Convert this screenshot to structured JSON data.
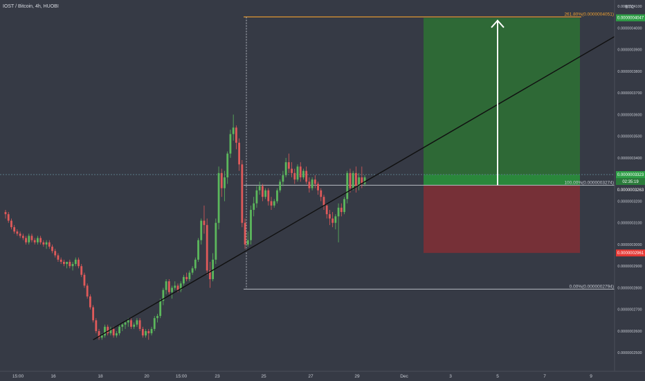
{
  "header": {
    "title": "IOST / Bitcoin, 4h, HUOBI",
    "currency": "BTC"
  },
  "colors": {
    "background": "#363a45",
    "up": "#5cb85c",
    "down": "#e05a5a",
    "target_zone": "#2e6b36",
    "stop_zone": "#7a2f37",
    "fib_target_line": "#f0a030",
    "fib_line": "#b8bcc4",
    "trendline": "#111111",
    "current_price_line": "#5a7a88",
    "stop_tag": "#e53935",
    "target_tag": "#2e9e46"
  },
  "chart_data": {
    "type": "candlestick",
    "ylim": [
      2.44e-07,
      4.11e-07
    ],
    "y_ticks": [
      {
        "value": 4.1e-07,
        "label": "0.0000004100"
      },
      {
        "value": 4e-07,
        "label": "0.0000004000"
      },
      {
        "value": 3.9e-07,
        "label": "0.0000003900"
      },
      {
        "value": 3.8e-07,
        "label": "0.0000003800"
      },
      {
        "value": 3.7e-07,
        "label": "0.0000003700"
      },
      {
        "value": 3.6e-07,
        "label": "0.0000003600"
      },
      {
        "value": 3.5e-07,
        "label": "0.0000003500"
      },
      {
        "value": 3.4e-07,
        "label": "0.0000003400"
      },
      {
        "value": 3.2e-07,
        "label": "0.0000003200"
      },
      {
        "value": 3.1e-07,
        "label": "0.0000003100"
      },
      {
        "value": 3e-07,
        "label": "0.0000003000"
      },
      {
        "value": 2.9e-07,
        "label": "0.0000002900"
      },
      {
        "value": 2.8e-07,
        "label": "0.0000002800"
      },
      {
        "value": 2.7e-07,
        "label": "0.0000002700"
      },
      {
        "value": 2.6e-07,
        "label": "0.0000002600"
      },
      {
        "value": 2.5e-07,
        "label": "0.0000002500"
      }
    ],
    "x_ticks": [
      "15:00",
      "16",
      "18",
      "20",
      "15:00",
      "23",
      "25",
      "27",
      "29",
      "Dec",
      "3",
      "5",
      "7",
      "9"
    ],
    "candles": [
      [
        3.15e-07,
        3.16e-07,
        3.12e-07,
        3.14e-07
      ],
      [
        3.14e-07,
        3.15e-07,
        3.1e-07,
        3.11e-07
      ],
      [
        3.11e-07,
        3.12e-07,
        3.07e-07,
        3.08e-07
      ],
      [
        3.08e-07,
        3.09e-07,
        3.05e-07,
        3.06e-07
      ],
      [
        3.06e-07,
        3.07e-07,
        3.04e-07,
        3.05e-07
      ],
      [
        3.05e-07,
        3.06e-07,
        3.03e-07,
        3.04e-07
      ],
      [
        3.04e-07,
        3.05e-07,
        3.02e-07,
        3.03e-07
      ],
      [
        3.03e-07,
        3.04e-07,
        3e-07,
        3.01e-07
      ],
      [
        3.01e-07,
        3.05e-07,
        3e-07,
        3.04e-07
      ],
      [
        3.04e-07,
        3.05e-07,
        3.01e-07,
        3.02e-07
      ],
      [
        3.02e-07,
        3.03e-07,
        3e-07,
        3.01e-07
      ],
      [
        3.01e-07,
        3.04e-07,
        3e-07,
        3.03e-07
      ],
      [
        3.03e-07,
        3.04e-07,
        3e-07,
        3.01e-07
      ],
      [
        3.01e-07,
        3.02e-07,
        2.99e-07,
        3e-07
      ],
      [
        3e-07,
        3.02e-07,
        2.98e-07,
        3.01e-07
      ],
      [
        3.01e-07,
        3.02e-07,
        2.98e-07,
        2.99e-07
      ],
      [
        2.99e-07,
        3e-07,
        2.96e-07,
        2.97e-07
      ],
      [
        2.97e-07,
        2.98e-07,
        2.94e-07,
        2.95e-07
      ],
      [
        2.95e-07,
        2.96e-07,
        2.92e-07,
        2.93e-07
      ],
      [
        2.93e-07,
        2.94e-07,
        2.91e-07,
        2.92e-07
      ],
      [
        2.92e-07,
        2.93e-07,
        2.9e-07,
        2.91e-07
      ],
      [
        2.91e-07,
        2.92e-07,
        2.89e-07,
        2.92e-07
      ],
      [
        2.92e-07,
        2.93e-07,
        2.89e-07,
        2.9e-07
      ],
      [
        2.9e-07,
        2.92e-07,
        2.88e-07,
        2.91e-07
      ],
      [
        2.91e-07,
        2.94e-07,
        2.9e-07,
        2.93e-07
      ],
      [
        2.93e-07,
        2.94e-07,
        2.89e-07,
        2.9e-07
      ],
      [
        2.9e-07,
        2.91e-07,
        2.85e-07,
        2.86e-07
      ],
      [
        2.86e-07,
        2.87e-07,
        2.8e-07,
        2.81e-07
      ],
      [
        2.81e-07,
        2.82e-07,
        2.75e-07,
        2.76e-07
      ],
      [
        2.76e-07,
        2.77e-07,
        2.7e-07,
        2.71e-07
      ],
      [
        2.71e-07,
        2.72e-07,
        2.64e-07,
        2.65e-07
      ],
      [
        2.65e-07,
        2.66e-07,
        2.59e-07,
        2.6e-07
      ],
      [
        2.6e-07,
        2.61e-07,
        2.56e-07,
        2.57e-07
      ],
      [
        2.57e-07,
        2.59e-07,
        2.56e-07,
        2.58e-07
      ],
      [
        2.58e-07,
        2.63e-07,
        2.57e-07,
        2.62e-07
      ],
      [
        2.62e-07,
        2.63e-07,
        2.58e-07,
        2.59e-07
      ],
      [
        2.59e-07,
        2.62e-07,
        2.58e-07,
        2.61e-07
      ],
      [
        2.61e-07,
        2.62e-07,
        2.57e-07,
        2.58e-07
      ],
      [
        2.58e-07,
        2.6e-07,
        2.57e-07,
        2.59e-07
      ],
      [
        2.59e-07,
        2.63e-07,
        2.58e-07,
        2.62e-07
      ],
      [
        2.62e-07,
        2.64e-07,
        2.6e-07,
        2.63e-07
      ],
      [
        2.63e-07,
        2.65e-07,
        2.61e-07,
        2.64e-07
      ],
      [
        2.64e-07,
        2.66e-07,
        2.62e-07,
        2.65e-07
      ],
      [
        2.65e-07,
        2.66e-07,
        2.61e-07,
        2.62e-07
      ],
      [
        2.62e-07,
        2.64e-07,
        2.61e-07,
        2.63e-07
      ],
      [
        2.63e-07,
        2.66e-07,
        2.62e-07,
        2.65e-07
      ],
      [
        2.65e-07,
        2.66e-07,
        2.6e-07,
        2.61e-07
      ],
      [
        2.61e-07,
        2.62e-07,
        2.57e-07,
        2.58e-07
      ],
      [
        2.58e-07,
        2.61e-07,
        2.57e-07,
        2.6e-07
      ],
      [
        2.6e-07,
        2.61e-07,
        2.56e-07,
        2.59e-07
      ],
      [
        2.59e-07,
        2.62e-07,
        2.58e-07,
        2.61e-07
      ],
      [
        2.61e-07,
        2.67e-07,
        2.6e-07,
        2.66e-07
      ],
      [
        2.66e-07,
        2.68e-07,
        2.64e-07,
        2.67e-07
      ],
      [
        2.67e-07,
        2.75e-07,
        2.66e-07,
        2.74e-07
      ],
      [
        2.74e-07,
        2.8e-07,
        2.72e-07,
        2.79e-07
      ],
      [
        2.79e-07,
        2.84e-07,
        2.77e-07,
        2.83e-07
      ],
      [
        2.83e-07,
        2.84e-07,
        2.77e-07,
        2.78e-07
      ],
      [
        2.78e-07,
        2.81e-07,
        2.75e-07,
        2.8e-07
      ],
      [
        2.8e-07,
        2.83e-07,
        2.79e-07,
        2.81e-07
      ],
      [
        2.81e-07,
        2.82e-07,
        2.78e-07,
        2.79e-07
      ],
      [
        2.79e-07,
        2.83e-07,
        2.78e-07,
        2.82e-07
      ],
      [
        2.82e-07,
        2.86e-07,
        2.81e-07,
        2.85e-07
      ],
      [
        2.85e-07,
        2.87e-07,
        2.83e-07,
        2.84e-07
      ],
      [
        2.84e-07,
        2.88e-07,
        2.83e-07,
        2.87e-07
      ],
      [
        2.87e-07,
        2.9e-07,
        2.86e-07,
        2.89e-07
      ],
      [
        2.89e-07,
        2.94e-07,
        2.88e-07,
        2.93e-07
      ],
      [
        2.93e-07,
        3.03e-07,
        2.92e-07,
        3.02e-07
      ],
      [
        3.02e-07,
        3.12e-07,
        3e-07,
        3.11e-07
      ],
      [
        3.11e-07,
        3.18e-07,
        3.05e-07,
        3.09e-07
      ],
      [
        3.09e-07,
        3.12e-07,
        2.86e-07,
        2.88e-07
      ],
      [
        2.88e-07,
        2.92e-07,
        2.8e-07,
        2.84e-07
      ],
      [
        2.84e-07,
        2.96e-07,
        2.83e-07,
        2.93e-07
      ],
      [
        2.93e-07,
        3.12e-07,
        2.91e-07,
        3.1e-07
      ],
      [
        3.1e-07,
        3.36e-07,
        3.07e-07,
        3.33e-07
      ],
      [
        3.33e-07,
        3.35e-07,
        3.22e-07,
        3.26e-07
      ],
      [
        3.26e-07,
        3.34e-07,
        3.2e-07,
        3.31e-07
      ],
      [
        3.31e-07,
        3.43e-07,
        3.28e-07,
        3.42e-07
      ],
      [
        3.42e-07,
        3.53e-07,
        3.4e-07,
        3.51e-07
      ],
      [
        3.51e-07,
        3.6e-07,
        3.48e-07,
        3.54e-07
      ],
      [
        3.54e-07,
        3.55e-07,
        3.44e-07,
        3.47e-07
      ],
      [
        3.47e-07,
        3.49e-07,
        3.34e-07,
        3.37e-07
      ],
      [
        3.37e-07,
        3.39e-07,
        3.08e-07,
        3.1e-07
      ],
      [
        3.1e-07,
        3.12e-07,
        2.98e-07,
        3e-07
      ],
      [
        3e-07,
        3.06e-07,
        2.99e-07,
        3.02e-07
      ],
      [
        3.02e-07,
        3.18e-07,
        3e-07,
        3.16e-07
      ],
      [
        3.16e-07,
        3.22e-07,
        3.13e-07,
        3.19e-07
      ],
      [
        3.19e-07,
        3.27e-07,
        3.17e-07,
        3.25e-07
      ],
      [
        3.25e-07,
        3.29e-07,
        3.23e-07,
        3.27e-07
      ],
      [
        3.27e-07,
        3.28e-07,
        3.2e-07,
        3.22e-07
      ],
      [
        3.22e-07,
        3.26e-07,
        3.21e-07,
        3.25e-07
      ],
      [
        3.25e-07,
        3.26e-07,
        3.18e-07,
        3.2e-07
      ],
      [
        3.2e-07,
        3.22e-07,
        3.16e-07,
        3.18e-07
      ],
      [
        3.18e-07,
        3.21e-07,
        3.17e-07,
        3.2e-07
      ],
      [
        3.2e-07,
        3.26e-07,
        3.19e-07,
        3.25e-07
      ],
      [
        3.25e-07,
        3.3e-07,
        3.24e-07,
        3.29e-07
      ],
      [
        3.29e-07,
        3.34e-07,
        3.27e-07,
        3.32e-07
      ],
      [
        3.32e-07,
        3.4e-07,
        3.31e-07,
        3.38e-07
      ],
      [
        3.38e-07,
        3.42e-07,
        3.33e-07,
        3.35e-07
      ],
      [
        3.35e-07,
        3.38e-07,
        3.31e-07,
        3.33e-07
      ],
      [
        3.33e-07,
        3.35e-07,
        3.28e-07,
        3.3e-07
      ],
      [
        3.3e-07,
        3.37e-07,
        3.29e-07,
        3.36e-07
      ],
      [
        3.36e-07,
        3.38e-07,
        3.29e-07,
        3.31e-07
      ],
      [
        3.31e-07,
        3.35e-07,
        3.3e-07,
        3.34e-07
      ],
      [
        3.34e-07,
        3.36e-07,
        3.28e-07,
        3.29e-07
      ],
      [
        3.29e-07,
        3.31e-07,
        3.24e-07,
        3.26e-07
      ],
      [
        3.26e-07,
        3.31e-07,
        3.25e-07,
        3.3e-07
      ],
      [
        3.3e-07,
        3.32e-07,
        3.26e-07,
        3.28e-07
      ],
      [
        3.28e-07,
        3.29e-07,
        3.23e-07,
        3.25e-07
      ],
      [
        3.25e-07,
        3.26e-07,
        3.2e-07,
        3.22e-07
      ],
      [
        3.22e-07,
        3.23e-07,
        3.16e-07,
        3.18e-07
      ],
      [
        3.18e-07,
        3.19e-07,
        3.12e-07,
        3.14e-07
      ],
      [
        3.14e-07,
        3.16e-07,
        3.09e-07,
        3.12e-07
      ],
      [
        3.12e-07,
        3.15e-07,
        3.08e-07,
        3.1e-07
      ],
      [
        3.1e-07,
        3.14e-07,
        3.07e-07,
        3.13e-07
      ],
      [
        3.13e-07,
        3.19e-07,
        3.01e-07,
        3.17e-07
      ],
      [
        3.17e-07,
        3.19e-07,
        3.13e-07,
        3.15e-07
      ],
      [
        3.15e-07,
        3.22e-07,
        3.14e-07,
        3.21e-07
      ],
      [
        3.21e-07,
        3.34e-07,
        3.19e-07,
        3.33e-07
      ],
      [
        3.33e-07,
        3.35e-07,
        3.24e-07,
        3.26e-07
      ],
      [
        3.26e-07,
        3.34e-07,
        3.25e-07,
        3.33e-07
      ],
      [
        3.33e-07,
        3.36e-07,
        3.24e-07,
        3.27e-07
      ],
      [
        3.27e-07,
        3.33e-07,
        3.25e-07,
        3.31e-07
      ],
      [
        3.31e-07,
        3.36e-07,
        3.26e-07,
        3.28e-07
      ],
      [
        3.28e-07,
        3.32e-07,
        3.27e-07,
        3.31e-07
      ]
    ]
  },
  "drawings": {
    "fib_target_label": "261.80%(0.0000004051)",
    "fib_entry_label": "100.00%(0.0000003274)",
    "fib_base_label": "0.00%(0.0000002794)",
    "fib_target_value": 4.051e-07,
    "fib_entry_value": 3.274e-07,
    "fib_base_value": 2.794e-07,
    "trendline_points": [
      [
        2.56e-07,
        30
      ],
      [
        3.47e-07,
        146
      ]
    ],
    "stop_value": 2.961e-07,
    "target_value": 4.047e-07
  },
  "price_tags": {
    "target": "0.0000004047",
    "current": "0.0000003323",
    "countdown": "02:35:19",
    "entry": "0.0000003263",
    "stop": "0.0000002961"
  }
}
